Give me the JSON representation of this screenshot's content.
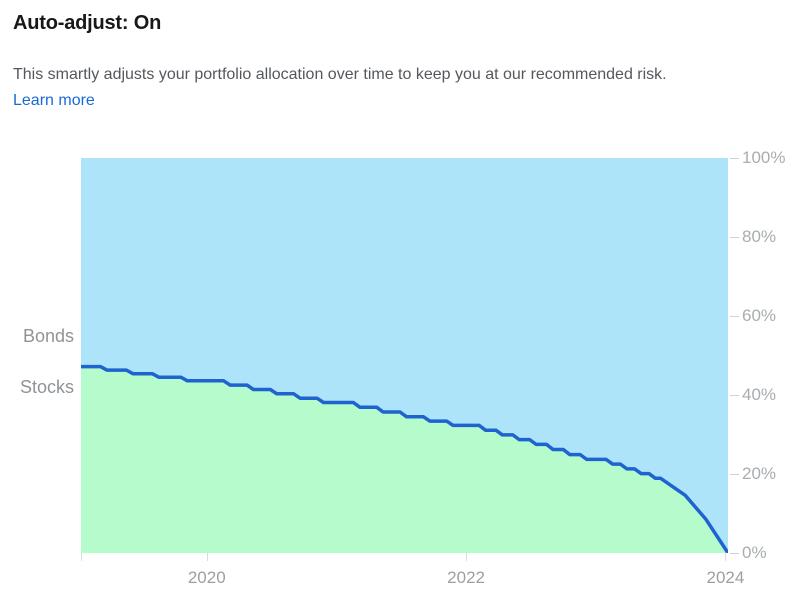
{
  "header": {
    "title": "Auto-adjust: On",
    "description": "This smartly adjusts your portfolio allocation over time to keep you at our recommended risk.",
    "learn_more_label": "Learn more"
  },
  "colors": {
    "link_blue": "#1a6ad6",
    "bonds_fill": "#ade4f9",
    "stocks_fill": "#b5fbcb",
    "glide_line": "#1e63cf",
    "axis_text": "#a8adb0"
  },
  "chart_data": {
    "type": "area",
    "stacked": true,
    "stacked_total": 100,
    "left_labels": {
      "top_region": "Bonds",
      "bottom_region": "Stocks"
    },
    "x_domain": [
      2019.03,
      2024.02
    ],
    "y_domain": [
      0,
      100
    ],
    "x_ticks": [
      {
        "value": 2019.03,
        "label": ""
      },
      {
        "value": 2020,
        "label": "2020"
      },
      {
        "value": 2022,
        "label": "2022"
      },
      {
        "value": 2024,
        "label": "2024"
      }
    ],
    "y_ticks": [
      {
        "value": 0,
        "label": "0%"
      },
      {
        "value": 20,
        "label": "20%"
      },
      {
        "value": 40,
        "label": "40%"
      },
      {
        "value": 60,
        "label": "60%"
      },
      {
        "value": 80,
        "label": "80%"
      },
      {
        "value": 100,
        "label": "100%"
      }
    ],
    "legend_position": "left-of-plot",
    "grid": false,
    "series": [
      {
        "name": "Stocks",
        "fill_color": "#b5fbcb",
        "line_color": "#1e63cf",
        "line_width": 3.5,
        "points": [
          [
            2019.03,
            47.2
          ],
          [
            2019.18,
            47.2
          ],
          [
            2019.23,
            46.3
          ],
          [
            2019.38,
            46.3
          ],
          [
            2019.43,
            45.4
          ],
          [
            2019.58,
            45.4
          ],
          [
            2019.63,
            44.5
          ],
          [
            2019.8,
            44.5
          ],
          [
            2019.85,
            43.6
          ],
          [
            2020.13,
            43.6
          ],
          [
            2020.18,
            42.5
          ],
          [
            2020.31,
            42.5
          ],
          [
            2020.36,
            41.4
          ],
          [
            2020.49,
            41.4
          ],
          [
            2020.54,
            40.3
          ],
          [
            2020.67,
            40.3
          ],
          [
            2020.72,
            39.2
          ],
          [
            2020.85,
            39.2
          ],
          [
            2020.9,
            38.1
          ],
          [
            2021.13,
            38.1
          ],
          [
            2021.18,
            36.9
          ],
          [
            2021.31,
            36.9
          ],
          [
            2021.36,
            35.7
          ],
          [
            2021.49,
            35.7
          ],
          [
            2021.54,
            34.5
          ],
          [
            2021.67,
            34.5
          ],
          [
            2021.72,
            33.4
          ],
          [
            2021.85,
            33.4
          ],
          [
            2021.9,
            32.3
          ],
          [
            2022.1,
            32.3
          ],
          [
            2022.15,
            31.1
          ],
          [
            2022.23,
            31.1
          ],
          [
            2022.28,
            29.9
          ],
          [
            2022.36,
            29.9
          ],
          [
            2022.41,
            28.7
          ],
          [
            2022.49,
            28.7
          ],
          [
            2022.54,
            27.5
          ],
          [
            2022.62,
            27.5
          ],
          [
            2022.67,
            26.2
          ],
          [
            2022.75,
            26.2
          ],
          [
            2022.8,
            24.9
          ],
          [
            2022.88,
            24.9
          ],
          [
            2022.93,
            23.7
          ],
          [
            2023.08,
            23.7
          ],
          [
            2023.13,
            22.5
          ],
          [
            2023.19,
            22.5
          ],
          [
            2023.24,
            21.3
          ],
          [
            2023.3,
            21.3
          ],
          [
            2023.35,
            20.1
          ],
          [
            2023.41,
            20.1
          ],
          [
            2023.46,
            18.9
          ],
          [
            2023.5,
            18.9
          ],
          [
            2023.69,
            14.6
          ],
          [
            2023.85,
            8.5
          ],
          [
            2024.02,
            0.0
          ]
        ]
      },
      {
        "name": "Bonds",
        "fill_color": "#ade4f9",
        "fills_remainder_to": 100
      }
    ]
  }
}
